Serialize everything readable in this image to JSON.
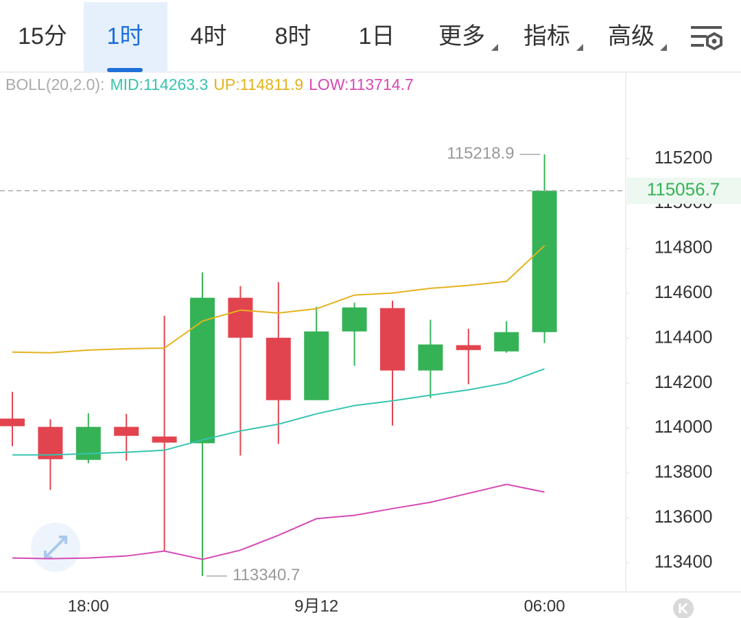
{
  "tabs": {
    "items": [
      "15分",
      "1时",
      "4时",
      "8时",
      "1日",
      "更多",
      "指标",
      "高级"
    ],
    "active": 1
  },
  "chart_data": {
    "type": "candlestick",
    "indicator": "BOLL(20,2.0):",
    "categories": [
      null,
      null,
      "18:00",
      null,
      null,
      null,
      null,
      null,
      "9月12",
      null,
      null,
      null,
      null,
      null,
      "06:00"
    ],
    "open": [
      114042,
      114005,
      113858,
      114005,
      113962,
      113932,
      114580,
      114402,
      114124,
      114430,
      114534,
      114256,
      114369,
      114341,
      114427
    ],
    "high": [
      114161,
      114039,
      114066,
      114063,
      114500,
      114693,
      114632,
      114650,
      114540,
      114558,
      114567,
      114482,
      114442,
      114476,
      115218.9
    ],
    "low": [
      113919,
      113724,
      113843,
      113855,
      113452,
      113340.7,
      113877,
      113929,
      114124,
      114277,
      114011,
      114133,
      114195,
      114335,
      114378
    ],
    "close": [
      114008,
      113861,
      114005,
      113965,
      113935,
      114580,
      114402,
      114124,
      114430,
      114537,
      114256,
      114372,
      114347,
      114427,
      115056.7
    ],
    "up_color": "#36b256",
    "down_color": "#e2444f",
    "series": [
      {
        "name": "MID:",
        "color": "#35c4b0",
        "values": [
          113880,
          113880,
          113886,
          113892,
          113901,
          113947,
          113987,
          114017,
          114063,
          114100,
          114121,
          114146,
          114170,
          114201,
          114263.3
        ]
      },
      {
        "name": "UP:",
        "color": "#e4b21c",
        "values": [
          114338,
          114335,
          114347,
          114353,
          114356,
          114476,
          114525,
          114512,
          114531,
          114592,
          114601,
          114622,
          114635,
          114653,
          114811.9
        ]
      },
      {
        "name": "LOW:",
        "color": "#d548b3",
        "values": [
          113421,
          113418,
          113421,
          113430,
          113452,
          113415,
          113456,
          113522,
          113596,
          113611,
          113641,
          113669,
          113709,
          113749,
          113714.7
        ]
      }
    ],
    "ylim": [
      113270,
      115585
    ],
    "yticks": [
      113400,
      113600,
      113800,
      114000,
      114200,
      114400,
      114600,
      114800,
      115000,
      115200
    ]
  }
}
